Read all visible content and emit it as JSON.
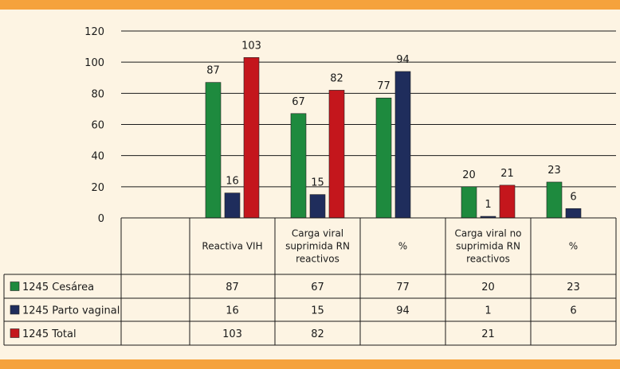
{
  "chart_data": {
    "type": "bar",
    "categories": [
      [
        "Reactiva VIH"
      ],
      [
        "Carga viral",
        "suprimida RN",
        "reactivos"
      ],
      [
        "%"
      ],
      [
        "Carga viral no",
        "suprimida RN",
        "reactivos"
      ],
      [
        "%"
      ]
    ],
    "series": [
      {
        "name": "1245 Cesárea",
        "color": "#1e8a3e",
        "values": [
          87,
          67,
          77,
          20,
          23
        ]
      },
      {
        "name": "1245 Parto vaginal",
        "color": "#1f2d5c",
        "values": [
          16,
          15,
          94,
          1,
          6
        ]
      },
      {
        "name": "1245 Total",
        "color": "#c4161c",
        "values": [
          103,
          82,
          null,
          21,
          null
        ]
      }
    ],
    "yticks": [
      0,
      20,
      40,
      60,
      80,
      100,
      120
    ],
    "ylim": [
      0,
      120
    ],
    "grid": true,
    "legend": "table-left"
  }
}
